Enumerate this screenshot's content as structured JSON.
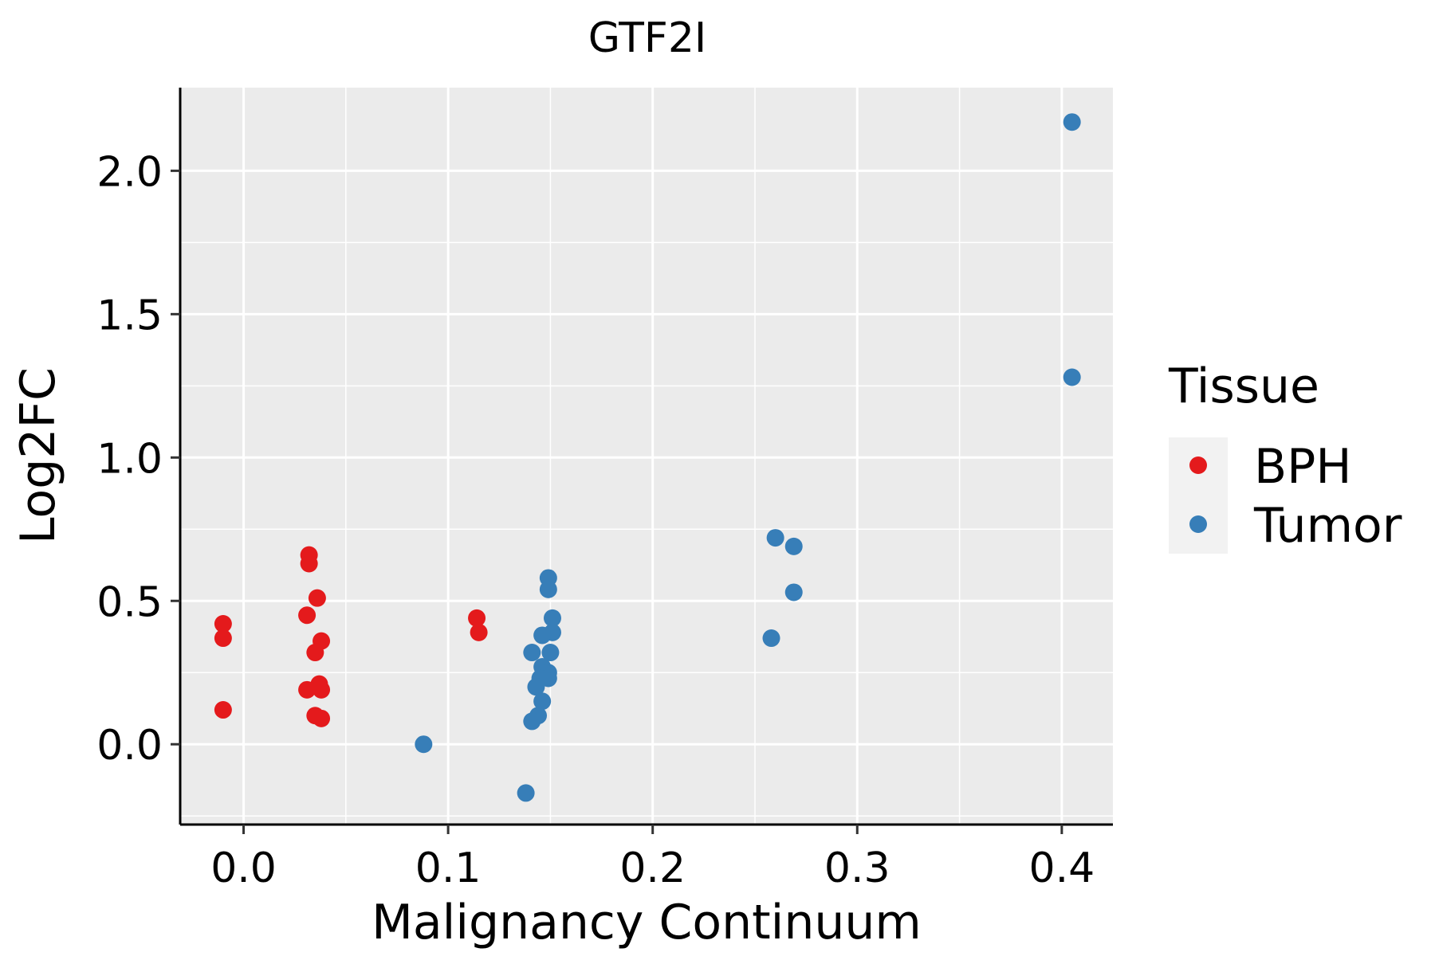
{
  "chart_data": {
    "type": "scatter",
    "title": "GTF2I",
    "xlabel": "Malignancy Continuum",
    "ylabel": "Log2FC",
    "xlim": [
      -0.031,
      0.425
    ],
    "ylim": [
      -0.28,
      2.29
    ],
    "x_ticks": [
      0.0,
      0.1,
      0.2,
      0.3,
      0.4
    ],
    "x_tick_labels": [
      "0.0",
      "0.1",
      "0.2",
      "0.3",
      "0.4"
    ],
    "y_ticks": [
      0.0,
      0.5,
      1.0,
      1.5,
      2.0
    ],
    "y_tick_labels": [
      "0.0",
      "0.5",
      "1.0",
      "1.5",
      "2.0"
    ],
    "grid": true,
    "legend": {
      "title": "Tissue",
      "position": "right"
    },
    "series": [
      {
        "name": "BPH",
        "color": "#E41A1C",
        "points": [
          [
            -0.01,
            0.42
          ],
          [
            -0.01,
            0.37
          ],
          [
            -0.01,
            0.12
          ],
          [
            0.032,
            0.66
          ],
          [
            0.032,
            0.63
          ],
          [
            0.036,
            0.51
          ],
          [
            0.031,
            0.45
          ],
          [
            0.038,
            0.36
          ],
          [
            0.035,
            0.32
          ],
          [
            0.037,
            0.21
          ],
          [
            0.031,
            0.19
          ],
          [
            0.038,
            0.19
          ],
          [
            0.035,
            0.1
          ],
          [
            0.038,
            0.09
          ],
          [
            0.114,
            0.44
          ],
          [
            0.115,
            0.39
          ]
        ]
      },
      {
        "name": "Tumor",
        "color": "#377EB8",
        "points": [
          [
            0.088,
            0.0
          ],
          [
            0.138,
            -0.17
          ],
          [
            0.149,
            0.58
          ],
          [
            0.149,
            0.54
          ],
          [
            0.151,
            0.44
          ],
          [
            0.151,
            0.39
          ],
          [
            0.146,
            0.38
          ],
          [
            0.141,
            0.32
          ],
          [
            0.15,
            0.32
          ],
          [
            0.146,
            0.27
          ],
          [
            0.149,
            0.25
          ],
          [
            0.145,
            0.23
          ],
          [
            0.149,
            0.23
          ],
          [
            0.143,
            0.2
          ],
          [
            0.146,
            0.15
          ],
          [
            0.144,
            0.1
          ],
          [
            0.141,
            0.08
          ],
          [
            0.26,
            0.72
          ],
          [
            0.269,
            0.69
          ],
          [
            0.269,
            0.53
          ],
          [
            0.258,
            0.37
          ],
          [
            0.405,
            2.17
          ],
          [
            0.405,
            1.28
          ]
        ]
      }
    ]
  }
}
